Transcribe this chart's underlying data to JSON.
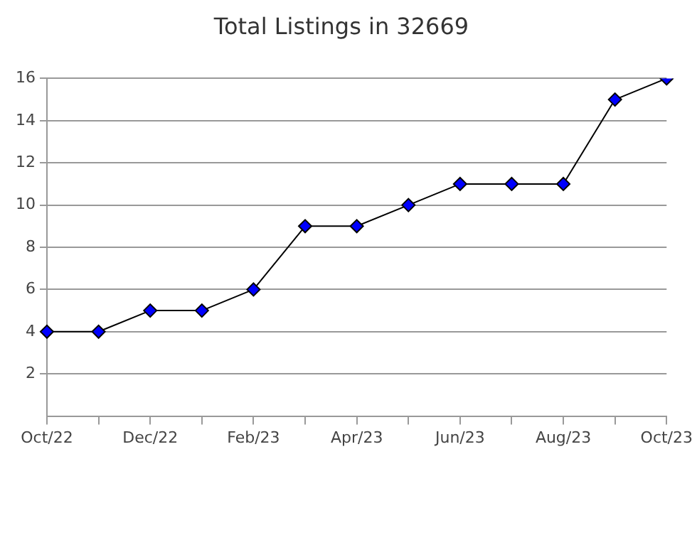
{
  "chart_data": {
    "type": "line",
    "title": "Total Listings in 32669",
    "categories": [
      "Oct/22",
      null,
      "Dec/22",
      null,
      "Feb/23",
      null,
      "Apr/23",
      null,
      "Jun/23",
      null,
      "Aug/23",
      null,
      "Oct/23"
    ],
    "series": [
      {
        "color": "#0000ff",
        "values": [
          4,
          4,
          5,
          5,
          6,
          9,
          9,
          10,
          11,
          11,
          11,
          15,
          16
        ]
      }
    ],
    "ylim": [
      0,
      16
    ],
    "yticks": [
      2,
      4,
      6,
      8,
      10,
      12,
      14,
      16
    ],
    "grid": "y",
    "legend": false,
    "marker": "diamond",
    "line_style": "solid"
  }
}
